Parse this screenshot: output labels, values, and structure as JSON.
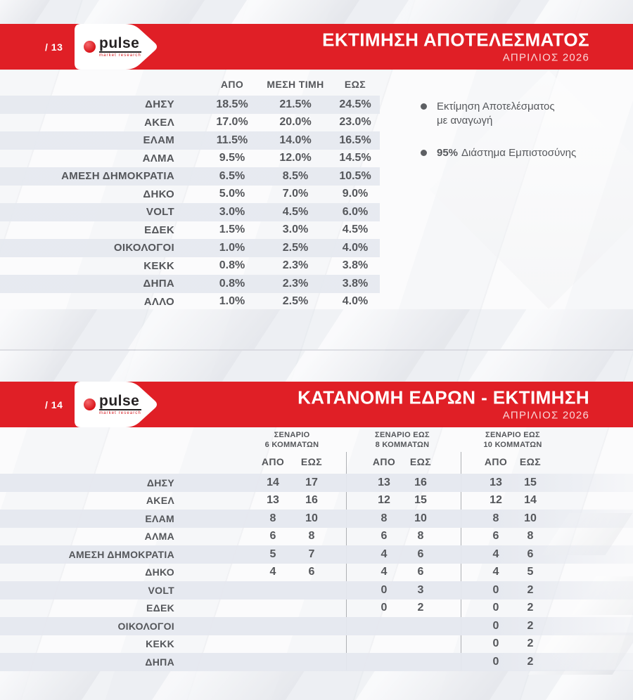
{
  "colors": {
    "accent_red": "#e01f26",
    "row_stripe": "#e6e9f0",
    "text_dark": "#54565a"
  },
  "brand": {
    "logo_text": "pulse",
    "logo_sub": "market research"
  },
  "slide1": {
    "page_number": "/ 13",
    "title": "ΕΚΤΙΜΗΣΗ ΑΠΟΤΕΛΕΣΜΑΤΟΣ",
    "subtitle": "ΑΠΡΙΛΙΟΣ 2026",
    "table": {
      "headers": [
        "ΑΠΟ",
        "ΜΕΣΗ ΤΙΜΗ",
        "ΕΩΣ"
      ],
      "rows": [
        {
          "party": "ΔΗΣΥ",
          "from": "18.5%",
          "mid": "21.5%",
          "to": "24.5%"
        },
        {
          "party": "ΑΚΕΛ",
          "from": "17.0%",
          "mid": "20.0%",
          "to": "23.0%"
        },
        {
          "party": "ΕΛΑΜ",
          "from": "11.5%",
          "mid": "14.0%",
          "to": "16.5%"
        },
        {
          "party": "ΑΛΜΑ",
          "from": "9.5%",
          "mid": "12.0%",
          "to": "14.5%"
        },
        {
          "party": "ΑΜΕΣΗ ΔΗΜΟΚΡΑΤΙΑ",
          "from": "6.5%",
          "mid": "8.5%",
          "to": "10.5%"
        },
        {
          "party": "ΔΗΚΟ",
          "from": "5.0%",
          "mid": "7.0%",
          "to": "9.0%"
        },
        {
          "party": "VOLT",
          "from": "3.0%",
          "mid": "4.5%",
          "to": "6.0%"
        },
        {
          "party": "ΕΔΕΚ",
          "from": "1.5%",
          "mid": "3.0%",
          "to": "4.5%"
        },
        {
          "party": "ΟΙΚΟΛΟΓΟΙ",
          "from": "1.0%",
          "mid": "2.5%",
          "to": "4.0%"
        },
        {
          "party": "ΚΕΚΚ",
          "from": "0.8%",
          "mid": "2.3%",
          "to": "3.8%"
        },
        {
          "party": "ΔΗΠΑ",
          "from": "0.8%",
          "mid": "2.3%",
          "to": "3.8%"
        },
        {
          "party": "ΑΛΛΟ",
          "from": "1.0%",
          "mid": "2.5%",
          "to": "4.0%"
        }
      ]
    },
    "legend": [
      {
        "text": "Εκτίμηση Αποτελέσματος\nμε αναγωγή"
      },
      {
        "bold": "95%",
        "text": "Διάστημα Εμπιστοσύνης"
      }
    ]
  },
  "slide2": {
    "page_number": "/ 14",
    "title": "ΚΑΤΑΝΟΜΗ ΕΔΡΩΝ - ΕΚΤΙΜΗΣΗ",
    "subtitle": "ΑΠΡΙΛΙΟΣ 2026",
    "scenarios": [
      {
        "line1": "ΣΕΝΑΡΙΟ",
        "line2": "6 ΚΟΜΜΑΤΩΝ"
      },
      {
        "line1": "ΣΕΝΑΡΙΟ ΕΩΣ",
        "line2": "8 ΚΟΜΜΑΤΩΝ"
      },
      {
        "line1": "ΣΕΝΑΡΙΟ ΕΩΣ",
        "line2": "10 ΚΟΜΜΑΤΩΝ"
      }
    ],
    "col_headers": [
      "ΑΠΟ",
      "ΕΩΣ"
    ],
    "rows": [
      {
        "party": "ΔΗΣΥ",
        "s1": [
          "14",
          "17"
        ],
        "s2": [
          "13",
          "16"
        ],
        "s3": [
          "13",
          "15"
        ]
      },
      {
        "party": "ΑΚΕΛ",
        "s1": [
          "13",
          "16"
        ],
        "s2": [
          "12",
          "15"
        ],
        "s3": [
          "12",
          "14"
        ]
      },
      {
        "party": "ΕΛΑΜ",
        "s1": [
          "8",
          "10"
        ],
        "s2": [
          "8",
          "10"
        ],
        "s3": [
          "8",
          "10"
        ]
      },
      {
        "party": "ΑΛΜΑ",
        "s1": [
          "6",
          "8"
        ],
        "s2": [
          "6",
          "8"
        ],
        "s3": [
          "6",
          "8"
        ]
      },
      {
        "party": "ΑΜΕΣΗ ΔΗΜΟΚΡΑΤΙΑ",
        "s1": [
          "5",
          "7"
        ],
        "s2": [
          "4",
          "6"
        ],
        "s3": [
          "4",
          "6"
        ]
      },
      {
        "party": "ΔΗΚΟ",
        "s1": [
          "4",
          "6"
        ],
        "s2": [
          "4",
          "6"
        ],
        "s3": [
          "4",
          "5"
        ]
      },
      {
        "party": "VOLT",
        "s1": [
          "",
          ""
        ],
        "s2": [
          "0",
          "3"
        ],
        "s3": [
          "0",
          "2"
        ]
      },
      {
        "party": "ΕΔΕΚ",
        "s1": [
          "",
          ""
        ],
        "s2": [
          "0",
          "2"
        ],
        "s3": [
          "0",
          "2"
        ]
      },
      {
        "party": "ΟΙΚΟΛΟΓΟΙ",
        "s1": [
          "",
          ""
        ],
        "s2": [
          "",
          ""
        ],
        "s3": [
          "0",
          "2"
        ]
      },
      {
        "party": "ΚΕΚΚ",
        "s1": [
          "",
          ""
        ],
        "s2": [
          "",
          ""
        ],
        "s3": [
          "0",
          "2"
        ]
      },
      {
        "party": "ΔΗΠΑ",
        "s1": [
          "",
          ""
        ],
        "s2": [
          "",
          ""
        ],
        "s3": [
          "0",
          "2"
        ]
      }
    ]
  }
}
